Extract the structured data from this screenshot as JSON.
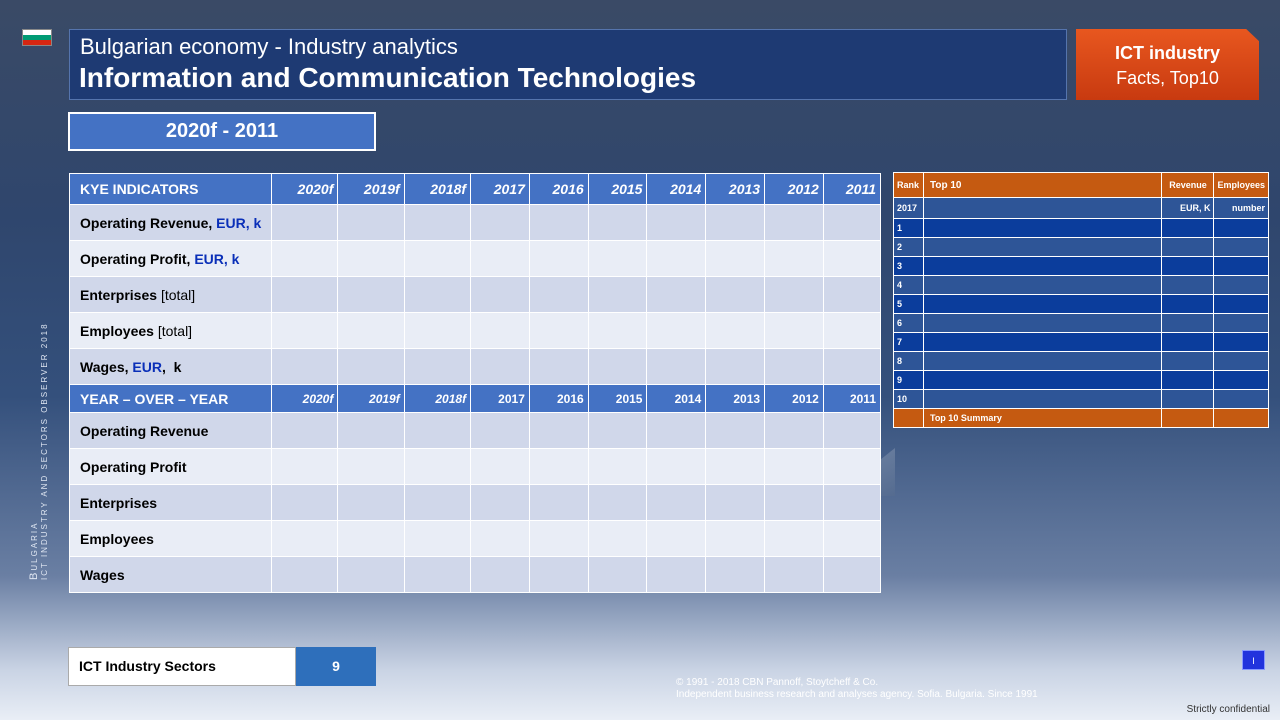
{
  "header": {
    "subtitle": "Bulgarian economy - Industry analytics",
    "title": "Information and Communication Technologies",
    "badge_line1": "ICT industry",
    "badge_line2": "Facts, Top10",
    "period": "2020f - 2011"
  },
  "flag_colors": [
    "#ffffff",
    "#009b74",
    "#d62612"
  ],
  "side_label": {
    "country": "Bulgaria",
    "caption": "ICT industry and sectors observer 2018"
  },
  "indicators": {
    "header_label": "KYE INDICATORS",
    "yoy_label": "YEAR – OVER – YEAR",
    "years": [
      "2020f",
      "2019f",
      "2018f",
      "2017",
      "2016",
      "2015",
      "2014",
      "2013",
      "2012",
      "2011"
    ],
    "rows": [
      {
        "label": "Operating Revenue, ",
        "unit": "EUR, k"
      },
      {
        "label": "Operating Profit, ",
        "unit": "EUR, k"
      },
      {
        "label": "Enterprises ",
        "extra": "[total]"
      },
      {
        "label": "Employees ",
        "extra": "[total]"
      },
      {
        "label": "Wages, ",
        "unit": "EUR",
        "suffix": ",  k"
      }
    ],
    "yoy_rows": [
      "Operating Revenue",
      "Operating Profit",
      "Enterprises",
      "Employees",
      "Wages"
    ]
  },
  "top10": {
    "col_rank": "Rank",
    "col_name": "Top 10",
    "col_revenue": "Revenue",
    "col_employees": "Employees",
    "year": "2017",
    "revenue_unit": "EUR, K",
    "employees_unit": "number",
    "ranks": [
      "1",
      "2",
      "3",
      "4",
      "5",
      "6",
      "7",
      "8",
      "9",
      "10"
    ],
    "summary": "Top 10 Summary"
  },
  "sectors": {
    "label": "ICT Industry Sectors",
    "value": "9"
  },
  "footer": {
    "copyright": "© 1991 - 2018 CBN  Pannoff, Stoytcheff & Co.",
    "agency": "Independent  business research and analyses agency. Sofia. Bulgaria. Since 1991",
    "confidential": "Strictly confidential",
    "nav": "I"
  }
}
